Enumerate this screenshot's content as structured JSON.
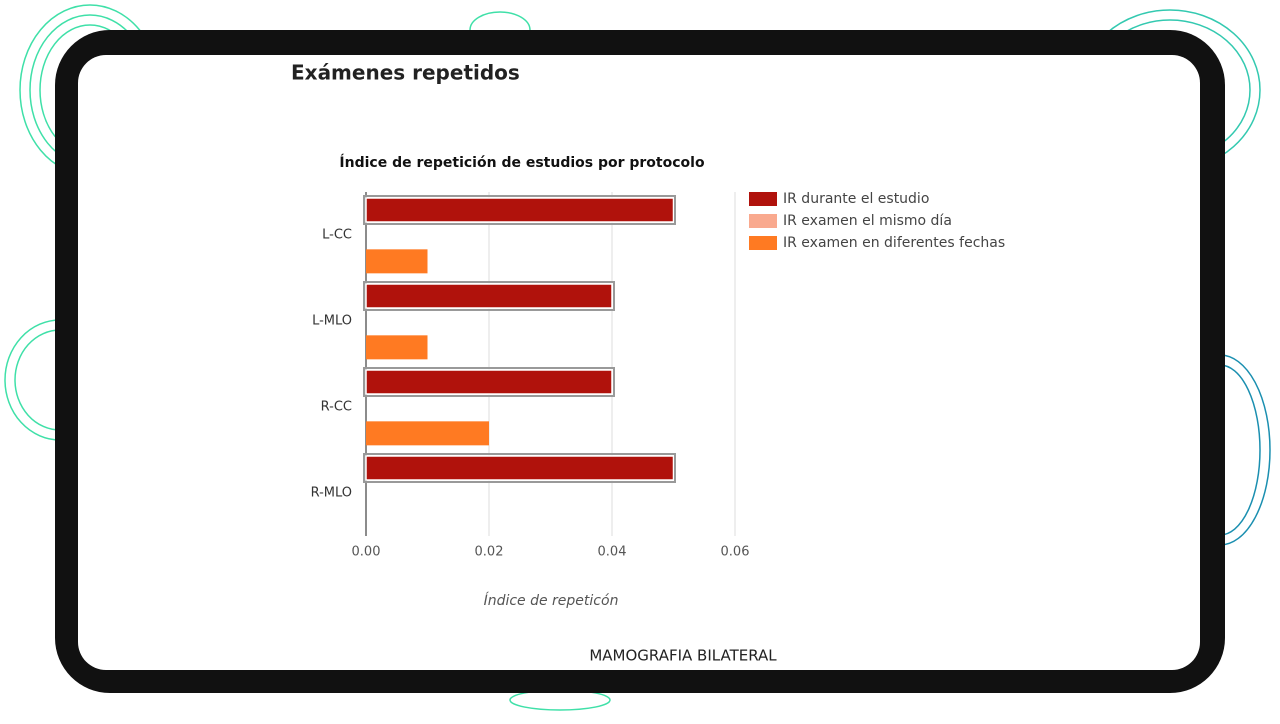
{
  "page": {
    "title": "Exámenes repetidos",
    "footer": "MAMOGRAFIA BILATERAL"
  },
  "chart_data": {
    "type": "bar",
    "orientation": "horizontal",
    "title": "Índice de repetición de estudios por protocolo",
    "x_label": "Índice de repeticón",
    "categories": [
      "L-CC",
      "L-MLO",
      "R-CC",
      "R-MLO"
    ],
    "series": [
      {
        "name": "IR durante el estudio",
        "color": "#b0120c",
        "values": [
          0.05,
          0.04,
          0.04,
          0.05
        ]
      },
      {
        "name": "IR examen el mismo día",
        "color": "#f9a98e",
        "values": [
          0,
          0,
          0,
          0
        ]
      },
      {
        "name": "IR examen en diferentes fechas",
        "color": "#ff7a22",
        "values": [
          0.01,
          0.01,
          0.02,
          0
        ]
      }
    ],
    "xlim": [
      0,
      0.06
    ],
    "xticks": [
      {
        "value": 0,
        "label": "0.00"
      },
      {
        "value": 0.02,
        "label": "0.02"
      },
      {
        "value": 0.04,
        "label": "0.04"
      },
      {
        "value": 0.06,
        "label": "0.06"
      }
    ],
    "grid": true,
    "legend": "right"
  }
}
